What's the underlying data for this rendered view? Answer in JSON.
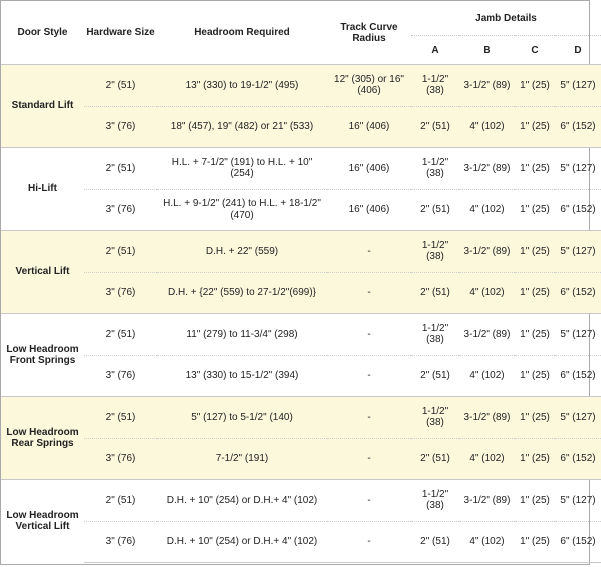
{
  "header": {
    "door_style": "Door Style",
    "hardware_size": "Hardware Size",
    "headroom_required": "Headroom Required",
    "track_curve_radius": "Track Curve Radius",
    "jamb_details": "Jamb Details",
    "jamb_cols": [
      "A",
      "B",
      "C",
      "D"
    ]
  },
  "groups": [
    {
      "style": "Standard Lift",
      "highlight": true,
      "rows": [
        {
          "hardware": "2\" (51)",
          "headroom": "13\" (330) to 19-1/2\" (495)",
          "track": "12\" (305) or 16\" (406)",
          "a": "1-1/2\" (38)",
          "b": "3-1/2\" (89)",
          "c": "1\" (25)",
          "d": "5\" (127)"
        },
        {
          "hardware": "3\" (76)",
          "headroom": "18\" (457), 19\" (482) or 21\" (533)",
          "track": "16\" (406)",
          "a": "2\" (51)",
          "b": "4\" (102)",
          "c": "1\" (25)",
          "d": "6\" (152)"
        }
      ]
    },
    {
      "style": "Hi-Lift",
      "highlight": false,
      "rows": [
        {
          "hardware": "2\" (51)",
          "headroom": "H.L. + 7-1/2\" (191) to H.L. + 10\" (254)",
          "track": "16\" (406)",
          "a": "1-1/2\" (38)",
          "b": "3-1/2\" (89)",
          "c": "1\" (25)",
          "d": "5\" (127)"
        },
        {
          "hardware": "3\" (76)",
          "headroom": "H.L. + 9-1/2\" (241) to H.L. + 18-1/2\" (470)",
          "track": "16\" (406)",
          "a": "2\" (51)",
          "b": "4\" (102)",
          "c": "1\" (25)",
          "d": "6\" (152)"
        }
      ]
    },
    {
      "style": "Vertical Lift",
      "highlight": true,
      "rows": [
        {
          "hardware": "2\" (51)",
          "headroom": "D.H. + 22\" (559)",
          "track": "-",
          "a": "1-1/2\" (38)",
          "b": "3-1/2\" (89)",
          "c": "1\" (25)",
          "d": "5\" (127)"
        },
        {
          "hardware": "3\" (76)",
          "headroom": "D.H. + {22\" (559) to 27-1/2\"(699)}",
          "track": "-",
          "a": "2\" (51)",
          "b": "4\" (102)",
          "c": "1\" (25)",
          "d": "6\" (152)"
        }
      ]
    },
    {
      "style": "Low Headroom Front Springs",
      "highlight": false,
      "rows": [
        {
          "hardware": "2\" (51)",
          "headroom": "11\" (279) to 11-3/4\" (298)",
          "track": "-",
          "a": "1-1/2\" (38)",
          "b": "3-1/2\" (89)",
          "c": "1\" (25)",
          "d": "5\" (127)"
        },
        {
          "hardware": "3\" (76)",
          "headroom": "13\" (330) to 15-1/2\" (394)",
          "track": "-",
          "a": "2\" (51)",
          "b": "4\" (102)",
          "c": "1\" (25)",
          "d": "6\" (152)"
        }
      ]
    },
    {
      "style": "Low Headroom Rear Springs",
      "highlight": true,
      "rows": [
        {
          "hardware": "2\" (51)",
          "headroom": "5\" (127) to 5-1/2\" (140)",
          "track": "-",
          "a": "1-1/2\" (38)",
          "b": "3-1/2\" (89)",
          "c": "1\" (25)",
          "d": "5\" (127)"
        },
        {
          "hardware": "3\" (76)",
          "headroom": "7-1/2\" (191)",
          "track": "-",
          "a": "2\" (51)",
          "b": "4\" (102)",
          "c": "1\" (25)",
          "d": "6\" (152)"
        }
      ]
    },
    {
      "style": "Low Headroom Vertical Lift",
      "highlight": false,
      "rows": [
        {
          "hardware": "2\" (51)",
          "headroom": "D.H. + 10\" (254) or D.H.+ 4\" (102)",
          "track": "-",
          "a": "1-1/2\" (38)",
          "b": "3-1/2\" (89)",
          "c": "1\" (25)",
          "d": "5\" (127)"
        },
        {
          "hardware": "3\" (76)",
          "headroom": "D.H. + 10\" (254) or D.H.+ 4\" (102)",
          "track": "-",
          "a": "2\" (51)",
          "b": "4\" (102)",
          "c": "1\" (25)",
          "d": "6\" (152)"
        }
      ]
    }
  ],
  "colors": {
    "highlight": "#fbf8dc",
    "border": "#c8c8c8",
    "text": "#222222"
  }
}
